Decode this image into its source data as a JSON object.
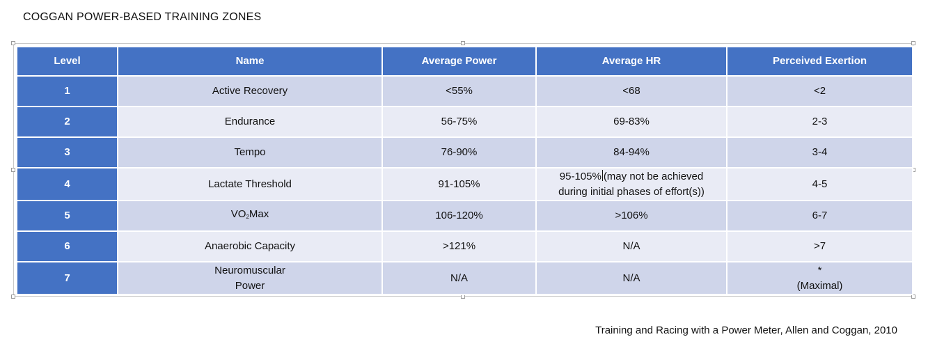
{
  "title": "COGGAN POWER-BASED TRAINING ZONES",
  "table": {
    "headers": [
      "Level",
      "Name",
      "Average Power",
      "Average HR",
      "Perceived Exertion"
    ],
    "rows": [
      {
        "level": "1",
        "name": "Active Recovery",
        "power": "<55%",
        "hr": "<68",
        "exertion": "<2"
      },
      {
        "level": "2",
        "name": "Endurance",
        "power": "56-75%",
        "hr": "69-83%",
        "exertion": "2-3"
      },
      {
        "level": "3",
        "name": "Tempo",
        "power": "76-90%",
        "hr": "84-94%",
        "exertion": "3-4"
      },
      {
        "level": "4",
        "name": "Lactate Threshold",
        "power": "91-105%",
        "hr_line1_a": "95-105%",
        "hr_line1_b": "(may not be achieved",
        "hr_line2": "during initial phases of effort(s))",
        "exertion": "4-5"
      },
      {
        "level": "5",
        "name_main": "VO",
        "name_sub": "2",
        "name_rest": "Max",
        "power": "106-120%",
        "hr": ">106%",
        "exertion": "6-7"
      },
      {
        "level": "6",
        "name": "Anaerobic Capacity",
        "power": ">121%",
        "hr": "N/A",
        "exertion": ">7"
      },
      {
        "level": "7",
        "name_line1": "Neuromuscular",
        "name_line2": "Power",
        "power": "N/A",
        "hr": "N/A",
        "exertion_line1": "*",
        "exertion_line2": "(Maximal)"
      }
    ]
  },
  "citation": "Training and Racing with a Power Meter, Allen and Coggan, 2010"
}
